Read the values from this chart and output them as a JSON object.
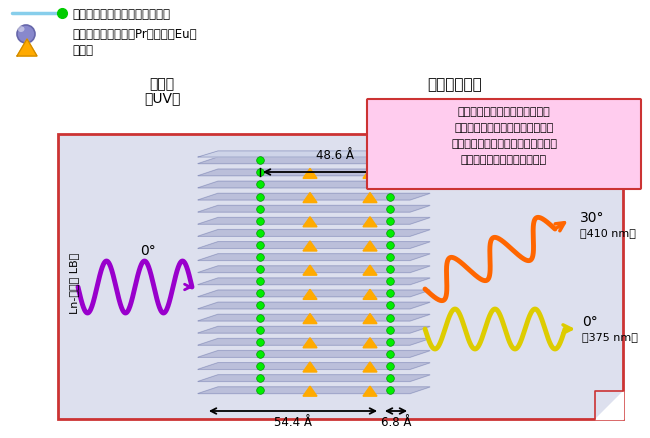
{
  "bg_color": "#ffffff",
  "legend_line_color": "#87CEEB",
  "legend_dot_color": "#00cc00",
  "legend_text1": "セッケン分子（ステアリン酸）",
  "legend_text2": "希土類金属イオン（PrあるいはEu）",
  "legend_text3": "メレム",
  "label_absorption": "光吸収\n（UV）",
  "label_emission": "メレムの発光",
  "pink_box_line1": "偏光性あり！（しかも多重性）",
  "pink_box_line2": "希土類金属シートの磁気的影響で",
  "pink_box_line3": "メレムからの発光がセッケン分子の",
  "pink_box_line4": "格子戸を通る際に生じた現象",
  "dim1": "48.6 Å",
  "dim2": "54.4 Å",
  "dim3": "6.8 Å",
  "angle1": "0°",
  "angle2": "30°",
  "angle3": "0°",
  "wavelength1": "（410 nm）",
  "wavelength2": "（375 nm）",
  "vertical_label": "Ln-メレム LB膜",
  "box_border": "#cc3333",
  "pink_bg": "#ffccee",
  "pink_border": "#cc3333",
  "layer_color": "#b8bcd8",
  "layer_edge": "#9098c0",
  "layer_top_color": "#ced4e8"
}
